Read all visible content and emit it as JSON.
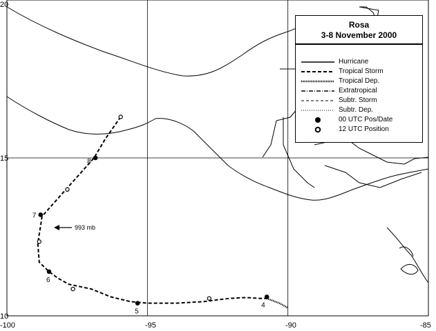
{
  "map": {
    "x_axis": {
      "range": [
        -100,
        -85
      ],
      "ticks": [
        -100,
        -95,
        -90,
        -85
      ],
      "tick_labels": [
        "-100",
        "-95",
        "-90",
        "-85"
      ]
    },
    "y_axis": {
      "range": [
        10,
        20
      ],
      "ticks": [
        10,
        15,
        20
      ],
      "tick_labels": [
        "10",
        "15",
        "20"
      ]
    },
    "grid": true,
    "coastline_color": "#000000",
    "track_color": "#000000",
    "track": {
      "tropical_storm": [
        [
          -95.95,
          16.3
        ],
        [
          -96.5,
          15.6
        ],
        [
          -96.9,
          15.0
        ],
        [
          -97.4,
          14.5
        ],
        [
          -97.9,
          14.0
        ],
        [
          -98.4,
          13.5
        ],
        [
          -98.75,
          13.15
        ],
        [
          -98.8,
          12.85
        ],
        [
          -98.9,
          12.3
        ],
        [
          -98.85,
          11.7
        ],
        [
          -98.5,
          11.4
        ],
        [
          -98.2,
          11.2
        ],
        [
          -97.8,
          11.0
        ],
        [
          -97.0,
          10.85
        ],
        [
          -96.3,
          10.6
        ],
        [
          -95.6,
          10.45
        ],
        [
          -95.0,
          10.4
        ],
        [
          -94.0,
          10.4
        ],
        [
          -93.0,
          10.45
        ],
        [
          -92.1,
          10.55
        ],
        [
          -91.5,
          10.58
        ],
        [
          -90.95,
          10.55
        ],
        [
          -90.75,
          10.55
        ]
      ],
      "tropical_depression": [
        [
          -90.75,
          10.55
        ],
        [
          -90.3,
          10.4
        ],
        [
          -90.0,
          10.25
        ]
      ],
      "points_00utc": [
        {
          "lon": -96.85,
          "lat": 15.0,
          "label": "8"
        },
        {
          "lon": -98.8,
          "lat": 13.2,
          "label": "7"
        },
        {
          "lon": -98.5,
          "lat": 11.4,
          "label": "6"
        },
        {
          "lon": -95.35,
          "lat": 10.4,
          "label": "5"
        },
        {
          "lon": -90.75,
          "lat": 10.6,
          "label": "4"
        }
      ],
      "points_12utc": [
        {
          "lon": -95.95,
          "lat": 16.3
        },
        {
          "lon": -97.85,
          "lat": 14.0
        },
        {
          "lon": -98.85,
          "lat": 12.35
        },
        {
          "lon": -97.65,
          "lat": 10.85
        },
        {
          "lon": -92.8,
          "lat": 10.55
        }
      ]
    },
    "annotation": {
      "text": "993 mb",
      "lon": -98.75,
      "lat": 12.75
    }
  },
  "legend": {
    "title_line1": "Rosa",
    "title_line2": "3-8 November 2000",
    "items": [
      {
        "label": "Hurricane",
        "style": "solid"
      },
      {
        "label": "Tropical Storm",
        "style": "dashed"
      },
      {
        "label": "Tropical Dep.",
        "style": "dotted-heavy"
      },
      {
        "label": "Extratropical",
        "style": "dashdot"
      },
      {
        "label": "Subtr. Storm",
        "style": "dashed-thin"
      },
      {
        "label": "Subtr. Dep.",
        "style": "dotted-thin"
      },
      {
        "label": "00 UTC Pos/Date",
        "style": "filled-dot"
      },
      {
        "label": "12 UTC Position",
        "style": "open-dot"
      }
    ]
  }
}
